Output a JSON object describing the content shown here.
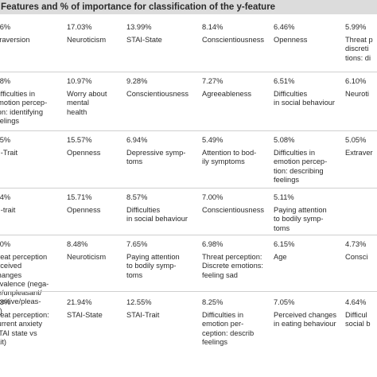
{
  "title": "Features and % of importance for classification of the y-feature",
  "rows": [
    {
      "cells": [
        {
          "pct": ".86%",
          "feat": "xtraversion"
        },
        {
          "pct": "17.03%",
          "feat": "Neuroticism"
        },
        {
          "pct": "13.99%",
          "feat": "STAI-State"
        },
        {
          "pct": "8.14%",
          "feat": "Conscientiousness"
        },
        {
          "pct": "6.46%",
          "feat": "Openness"
        },
        {
          "pct": "5.99%",
          "feat": "Threat p\ndiscreti\ntions: di"
        }
      ]
    },
    {
      "cells": [
        {
          "pct": ".68%",
          "feat": "Difficulties in\nemotion percep-\ntion: identifying\nfeelings"
        },
        {
          "pct": "10.97%",
          "feat": "Worry about\nmental\nhealth"
        },
        {
          "pct": "9.28%",
          "feat": "Conscientiousness"
        },
        {
          "pct": "7.27%",
          "feat": "Agreeableness"
        },
        {
          "pct": "6.51%",
          "feat": "Difficulties\nin social behaviour"
        },
        {
          "pct": "6.10%",
          "feat": "Neuroti"
        }
      ]
    },
    {
      "cells": [
        {
          "pct": ".85%",
          "feat": "AI-Trait"
        },
        {
          "pct": "15.57%",
          "feat": "Openness"
        },
        {
          "pct": "6.94%",
          "feat": "Depressive symp-\ntoms"
        },
        {
          "pct": "5.49%",
          "feat": "Attention to bod-\nily symptoms"
        },
        {
          "pct": "5.08%",
          "feat": "Difficulties in\nemotion percep-\ntion: describing\nfeelings"
        },
        {
          "pct": "5.05%",
          "feat": "Extraver"
        }
      ]
    },
    {
      "cells": [
        {
          "pct": ".74%",
          "feat": "AI-trait"
        },
        {
          "pct": "15.71%",
          "feat": "Openness"
        },
        {
          "pct": "8.57%",
          "feat": "Difficulties\nin social behaviour"
        },
        {
          "pct": "7.00%",
          "feat": "Conscientiousness"
        },
        {
          "pct": "5.11%",
          "feat": "Paying attention\nto bodily symp-\ntoms"
        },
        {
          "pct": "",
          "feat": ""
        }
      ]
    },
    {
      "cells": [
        {
          "pct": ".10%",
          "feat": "hreat perception\nerceived changes\nn valence (nega-\nve/unpleasant/\npositive/pleas-\nnt)"
        },
        {
          "pct": "8.48%",
          "feat": "Neuroticism"
        },
        {
          "pct": "7.65%",
          "feat": "Paying attention\nto bodily symp-\ntoms"
        },
        {
          "pct": "6.98%",
          "feat": "Threat perception:\nDiscrete emotions:\nfeeling sad"
        },
        {
          "pct": "6.15%",
          "feat": "Age"
        },
        {
          "pct": "4.73%",
          "feat": "Consci"
        }
      ]
    },
    {
      "cells": [
        {
          "pct": ".23%",
          "feat": "hreat perception:\ncurrent anxiety\nSTAI state vs\nrait)"
        },
        {
          "pct": "21.94%",
          "feat": "STAI-State"
        },
        {
          "pct": "12.55%",
          "feat": "STAI-Trait"
        },
        {
          "pct": "8.25%",
          "feat": "Difficulties in\nemotion per-\nception: describ\nfeelings"
        },
        {
          "pct": "7.05%",
          "feat": "Perceived changes\nin eating behaviour"
        },
        {
          "pct": "4.64%",
          "feat": "Difficul\nsocial b"
        }
      ]
    }
  ]
}
